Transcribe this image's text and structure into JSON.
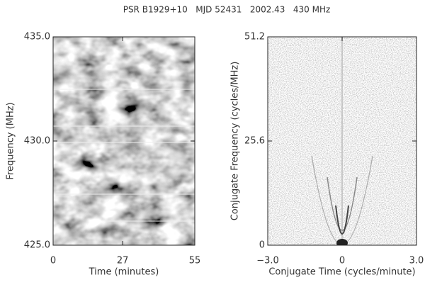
{
  "title": "PSR B1929+10   MJD 52431   2002.43   430 MHz",
  "chart_data": [
    {
      "type": "heatmap",
      "xlabel": "Time (minutes)",
      "ylabel": "Frequency (MHz)",
      "xlim": [
        0,
        55
      ],
      "xticks": [
        0,
        27,
        55
      ],
      "ylim": [
        425,
        435
      ],
      "yticks": [
        {
          "value": 425,
          "label": "425.0"
        },
        {
          "value": 430,
          "label": "430.0"
        },
        {
          "value": 435,
          "label": "435.0"
        }
      ]
    },
    {
      "type": "heatmap",
      "xlabel": "Conjugate Time (cycles/minute)",
      "ylabel": "Conjugate Frequency (cycles/MHz)",
      "xlim": [
        -3,
        3
      ],
      "xticks": [
        {
          "value": -3,
          "label": "−3.0"
        },
        0,
        {
          "value": 3,
          "label": "3.0"
        }
      ],
      "ylim": [
        0,
        51.2
      ],
      "yticks": [
        0,
        25.6,
        51.2
      ]
    }
  ]
}
